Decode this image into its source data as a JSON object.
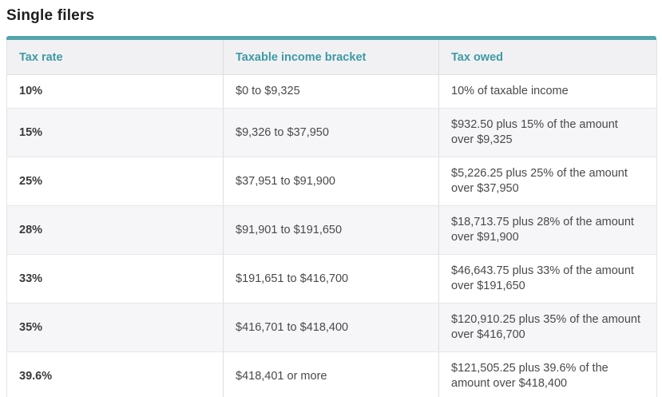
{
  "page": {
    "title": "Single filers"
  },
  "theme": {
    "accent": "#53a4ab",
    "header_text": "#3d9aa5",
    "title_color": "#1d1d1f",
    "body_text": "#49494b",
    "header_bg": "#f1f1f3",
    "alt_row_bg": "#f6f6f8"
  },
  "table": {
    "columns": [
      "Tax rate",
      "Taxable income bracket",
      "Tax owed"
    ],
    "rows": [
      [
        "10%",
        "$0 to $9,325",
        "10% of taxable income"
      ],
      [
        "15%",
        "$9,326 to $37,950",
        "$932.50 plus 15% of the amount over $9,325"
      ],
      [
        "25%",
        "$37,951 to $91,900",
        "$5,226.25 plus 25% of the amount over $37,950"
      ],
      [
        "28%",
        "$91,901 to $191,650",
        "$18,713.75 plus 28% of the amount over $91,900"
      ],
      [
        "33%",
        "$191,651 to $416,700",
        "$46,643.75 plus 33% of the amount over $191,650"
      ],
      [
        "35%",
        "$416,701 to $418,400",
        "$120,910.25 plus 35% of the amount over $416,700"
      ],
      [
        "39.6%",
        "$418,401 or more",
        "$121,505.25 plus 39.6% of the amount over $418,400"
      ]
    ]
  }
}
